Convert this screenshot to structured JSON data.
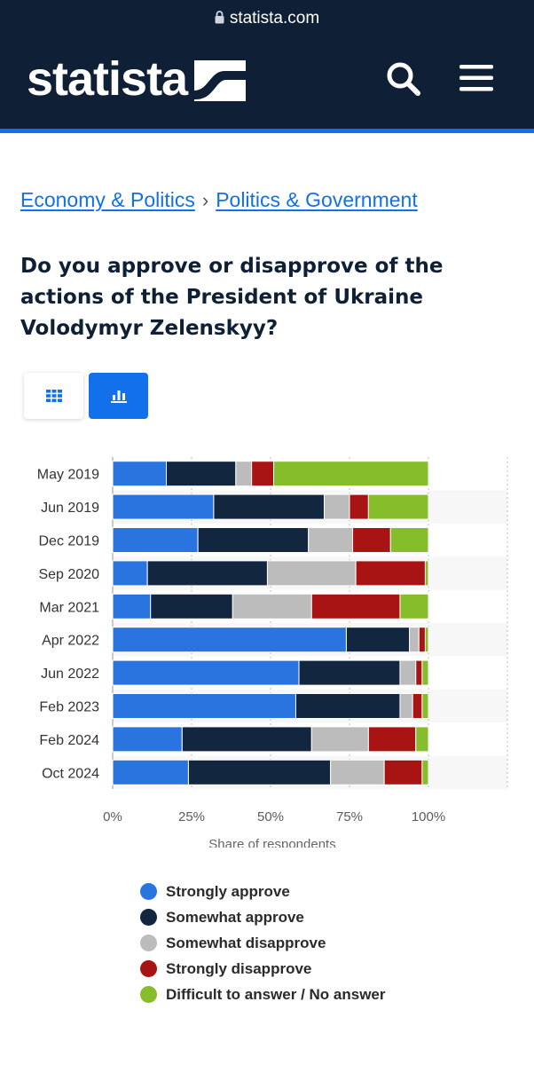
{
  "browser": {
    "url": "statista.com"
  },
  "header": {
    "logo_text": "statista"
  },
  "breadcrumb": {
    "items": [
      "Economy & Politics",
      "Politics & Government"
    ],
    "separator": "›"
  },
  "title": "Do you approve or disapprove of the actions of the President of Ukraine Volodymyr Zelenskyy?",
  "colors": {
    "header_bg": "#0f1f36",
    "accent": "#1170ea"
  },
  "chart_data": {
    "type": "bar",
    "orientation": "horizontal",
    "stacked": true,
    "title": "Do you approve or disapprove of the actions of the President of Ukraine Volodymyr Zelenskyy?",
    "xlabel": "Share of respondents",
    "ylabel": "",
    "xlim": [
      0,
      125
    ],
    "x_ticks": [
      "0%",
      "25%",
      "50%",
      "75%",
      "100%"
    ],
    "x_tick_values": [
      0,
      25,
      50,
      75,
      100
    ],
    "grid": "vertical dotted",
    "legend_position": "bottom",
    "categories": [
      "May 2019",
      "Jun 2019",
      "Dec 2019",
      "Sep 2020",
      "Mar 2021",
      "Apr 2022",
      "Jun 2022",
      "Feb 2023",
      "Feb 2024",
      "Oct 2024"
    ],
    "series": [
      {
        "name": "Strongly approve",
        "color": "#2a74e0",
        "values": [
          17,
          32,
          27,
          11,
          12,
          74,
          59,
          58,
          22,
          24
        ]
      },
      {
        "name": "Somewhat approve",
        "color": "#12263f",
        "values": [
          22,
          35,
          35,
          38,
          26,
          20,
          32,
          33,
          41,
          45
        ]
      },
      {
        "name": "Somewhat disapprove",
        "color": "#bcbcbc",
        "values": [
          5,
          8,
          14,
          28,
          25,
          3,
          5,
          4,
          18,
          17
        ]
      },
      {
        "name": "Strongly disapprove",
        "color": "#a81414",
        "values": [
          7,
          6,
          12,
          22,
          28,
          2,
          2,
          3,
          15,
          12
        ]
      },
      {
        "name": "Difficult to answer / No answer",
        "color": "#86bd2b",
        "values": [
          49,
          19,
          12,
          1,
          9,
          1,
          2,
          2,
          4,
          2
        ]
      }
    ]
  }
}
